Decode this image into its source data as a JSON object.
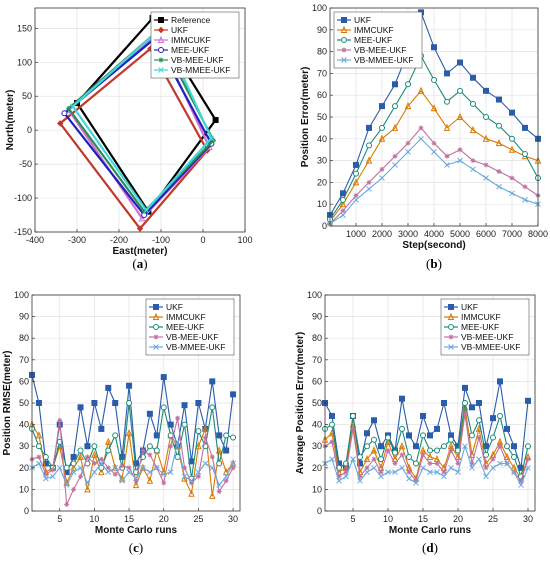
{
  "chart_data": [
    {
      "id": "a",
      "type": "line",
      "caption": "a",
      "xlabel": "East(meter)",
      "ylabel": "North(meter)",
      "xlim": [
        -400,
        100
      ],
      "ylim": [
        -150,
        180
      ],
      "xticks": [
        -400,
        -300,
        -200,
        -100,
        0,
        100
      ],
      "yticks": [
        -150,
        -100,
        -50,
        0,
        50,
        100,
        150
      ],
      "grid": true,
      "legend": "top-right",
      "series": [
        {
          "name": "Reference",
          "color": "#000000",
          "marker": "square",
          "x": [
            -120,
            -300,
            -130,
            30,
            -120
          ],
          "y": [
            165,
            40,
            -120,
            15,
            165
          ]
        },
        {
          "name": "UKF",
          "color": "#c0392b",
          "marker": "diamond",
          "x": [
            -125,
            -340,
            -150,
            10,
            -125
          ],
          "y": [
            120,
            10,
            -145,
            -30,
            120
          ]
        },
        {
          "name": "IMMCUKF",
          "color": "#d070d0",
          "marker": "triangle",
          "x": [
            -110,
            -320,
            -145,
            15,
            -110
          ],
          "y": [
            140,
            30,
            -130,
            -25,
            140
          ]
        },
        {
          "name": "MEE-UKF",
          "color": "#2020c0",
          "marker": "circle",
          "x": [
            -115,
            -330,
            -140,
            20,
            -115
          ],
          "y": [
            135,
            25,
            -125,
            -20,
            135
          ]
        },
        {
          "name": "VB-MEE-UKF",
          "color": "#2e8b57",
          "marker": "star",
          "x": [
            -110,
            -320,
            -140,
            25,
            -110
          ],
          "y": [
            145,
            32,
            -120,
            -15,
            145
          ]
        },
        {
          "name": "VB-MMEE-UKF",
          "color": "#40d8d8",
          "marker": "cross",
          "x": [
            -100,
            -310,
            -135,
            20,
            -100
          ],
          "y": [
            150,
            35,
            -118,
            -12,
            150
          ]
        }
      ]
    },
    {
      "id": "b",
      "type": "line",
      "caption": "b",
      "xlabel": "Step(second)",
      "ylabel": "Position Error(meter)",
      "xlim": [
        0,
        8000
      ],
      "ylim": [
        0,
        100
      ],
      "xticks": [
        1000,
        2000,
        3000,
        4000,
        5000,
        6000,
        7000,
        8000
      ],
      "yticks": [
        0,
        10,
        20,
        30,
        40,
        50,
        60,
        70,
        80,
        90,
        100
      ],
      "grid": true,
      "legend": "top-left",
      "x": [
        0,
        500,
        1000,
        1500,
        2000,
        2500,
        3000,
        3500,
        4000,
        4500,
        5000,
        5500,
        6000,
        6500,
        7000,
        7500,
        8000
      ],
      "series": [
        {
          "name": "UKF",
          "color": "#2a5caa",
          "marker": "square",
          "values": [
            5,
            15,
            28,
            45,
            55,
            65,
            80,
            98,
            82,
            70,
            75,
            68,
            62,
            58,
            52,
            45,
            40
          ]
        },
        {
          "name": "IMMCUKF",
          "color": "#d97a00",
          "marker": "triangle",
          "values": [
            2,
            10,
            20,
            30,
            40,
            45,
            55,
            62,
            54,
            45,
            50,
            44,
            40,
            38,
            35,
            32,
            30
          ]
        },
        {
          "name": "MEE-UKF",
          "color": "#1a8a7a",
          "marker": "circle",
          "values": [
            3,
            12,
            24,
            37,
            45,
            55,
            65,
            78,
            67,
            57,
            62,
            56,
            50,
            46,
            40,
            33,
            22
          ]
        },
        {
          "name": "VB-MEE-UKF",
          "color": "#c070a0",
          "marker": "star",
          "values": [
            1,
            7,
            14,
            20,
            26,
            32,
            38,
            45,
            38,
            32,
            35,
            30,
            28,
            25,
            22,
            18,
            14
          ]
        },
        {
          "name": "VB-MMEE-UKF",
          "color": "#6aa8e0",
          "marker": "cross",
          "values": [
            1,
            5,
            12,
            17,
            22,
            28,
            34,
            40,
            34,
            28,
            30,
            26,
            22,
            18,
            15,
            12,
            10
          ]
        }
      ]
    },
    {
      "id": "c",
      "type": "line",
      "caption": "c",
      "xlabel": "Monte Carlo runs",
      "ylabel": "Position RMSE(meter)",
      "xlim": [
        1,
        31
      ],
      "ylim": [
        0,
        100
      ],
      "xticks": [
        5,
        10,
        15,
        20,
        25,
        30
      ],
      "yticks": [
        0,
        10,
        20,
        30,
        40,
        50,
        60,
        70,
        80,
        90,
        100
      ],
      "grid": true,
      "legend": "top-right",
      "x": [
        1,
        2,
        3,
        4,
        5,
        6,
        7,
        8,
        9,
        10,
        11,
        12,
        13,
        14,
        15,
        16,
        17,
        18,
        19,
        20,
        21,
        22,
        23,
        24,
        25,
        26,
        27,
        28,
        29,
        30
      ],
      "series": [
        {
          "name": "UKF",
          "color": "#2a5caa",
          "marker": "square",
          "values": [
            63,
            50,
            22,
            20,
            40,
            18,
            25,
            48,
            30,
            50,
            38,
            57,
            50,
            25,
            58,
            22,
            28,
            45,
            35,
            62,
            40,
            30,
            49,
            23,
            50,
            38,
            60,
            35,
            28,
            54
          ]
        },
        {
          "name": "IMMCUKF",
          "color": "#d97a00",
          "marker": "triangle",
          "values": [
            40,
            35,
            18,
            20,
            30,
            13,
            20,
            25,
            10,
            26,
            18,
            32,
            20,
            15,
            36,
            12,
            20,
            14,
            28,
            18,
            35,
            30,
            15,
            8,
            30,
            38,
            7,
            28,
            18,
            22
          ]
        },
        {
          "name": "MEE-UKF",
          "color": "#1a8a7a",
          "marker": "circle",
          "values": [
            38,
            30,
            25,
            20,
            32,
            20,
            22,
            28,
            22,
            30,
            20,
            28,
            35,
            20,
            50,
            18,
            25,
            30,
            28,
            48,
            35,
            25,
            40,
            15,
            37,
            30,
            48,
            22,
            35,
            34
          ]
        },
        {
          "name": "VB-MEE-UKF",
          "color": "#c070a0",
          "marker": "star",
          "values": [
            24,
            25,
            17,
            19,
            42,
            3,
            10,
            16,
            25,
            22,
            24,
            20,
            17,
            21,
            20,
            14,
            28,
            26,
            20,
            13,
            30,
            43,
            20,
            13,
            16,
            34,
            25,
            9,
            14,
            20
          ]
        },
        {
          "name": "VB-MMEE-UKF",
          "color": "#6aa8e0",
          "marker": "cross",
          "values": [
            20,
            22,
            15,
            16,
            20,
            12,
            18,
            20,
            13,
            18,
            22,
            18,
            20,
            14,
            18,
            15,
            20,
            18,
            20,
            17,
            18,
            32,
            16,
            14,
            18,
            22,
            20,
            12,
            16,
            22
          ]
        }
      ]
    },
    {
      "id": "d",
      "type": "line",
      "caption": "d",
      "xlabel": "Monte Carlo runs",
      "ylabel": "Average Position Error(meter)",
      "xlim": [
        1,
        31
      ],
      "ylim": [
        0,
        100
      ],
      "xticks": [
        5,
        10,
        15,
        20,
        25,
        30
      ],
      "yticks": [
        0,
        10,
        20,
        30,
        40,
        50,
        60,
        70,
        80,
        90,
        100
      ],
      "grid": true,
      "legend": "top-right",
      "x": [
        1,
        2,
        3,
        4,
        5,
        6,
        7,
        8,
        9,
        10,
        11,
        12,
        13,
        14,
        15,
        16,
        17,
        18,
        19,
        20,
        21,
        22,
        23,
        24,
        25,
        26,
        27,
        28,
        29,
        30
      ],
      "series": [
        {
          "name": "UKF",
          "color": "#2a5caa",
          "marker": "square",
          "values": [
            50,
            44,
            22,
            20,
            44,
            22,
            36,
            42,
            30,
            35,
            28,
            52,
            35,
            30,
            44,
            35,
            38,
            50,
            35,
            30,
            57,
            48,
            50,
            30,
            43,
            60,
            38,
            30,
            20,
            51
          ]
        },
        {
          "name": "IMMCUKF",
          "color": "#d97a00",
          "marker": "triangle",
          "values": [
            33,
            36,
            18,
            20,
            40,
            18,
            24,
            28,
            20,
            32,
            24,
            30,
            20,
            15,
            28,
            25,
            24,
            20,
            30,
            25,
            48,
            26,
            38,
            22,
            26,
            32,
            25,
            20,
            15,
            25
          ]
        },
        {
          "name": "MEE-UKF",
          "color": "#1a8a7a",
          "marker": "circle",
          "values": [
            38,
            40,
            20,
            22,
            44,
            25,
            30,
            33,
            24,
            34,
            27,
            38,
            25,
            22,
            35,
            28,
            28,
            30,
            33,
            28,
            50,
            35,
            42,
            26,
            34,
            44,
            30,
            25,
            16,
            30
          ]
        },
        {
          "name": "VB-MEE-UKF",
          "color": "#c070a0",
          "marker": "star",
          "values": [
            30,
            32,
            16,
            18,
            38,
            16,
            20,
            24,
            18,
            28,
            22,
            26,
            18,
            14,
            26,
            22,
            22,
            18,
            28,
            22,
            45,
            22,
            34,
            20,
            24,
            30,
            22,
            18,
            14,
            24
          ]
        },
        {
          "name": "VB-MMEE-UKF",
          "color": "#6aa8e0",
          "marker": "cross",
          "values": [
            22,
            24,
            14,
            16,
            24,
            14,
            18,
            20,
            16,
            18,
            18,
            20,
            15,
            13,
            20,
            18,
            18,
            16,
            20,
            18,
            30,
            20,
            24,
            16,
            20,
            22,
            22,
            18,
            12,
            20
          ]
        }
      ]
    }
  ]
}
